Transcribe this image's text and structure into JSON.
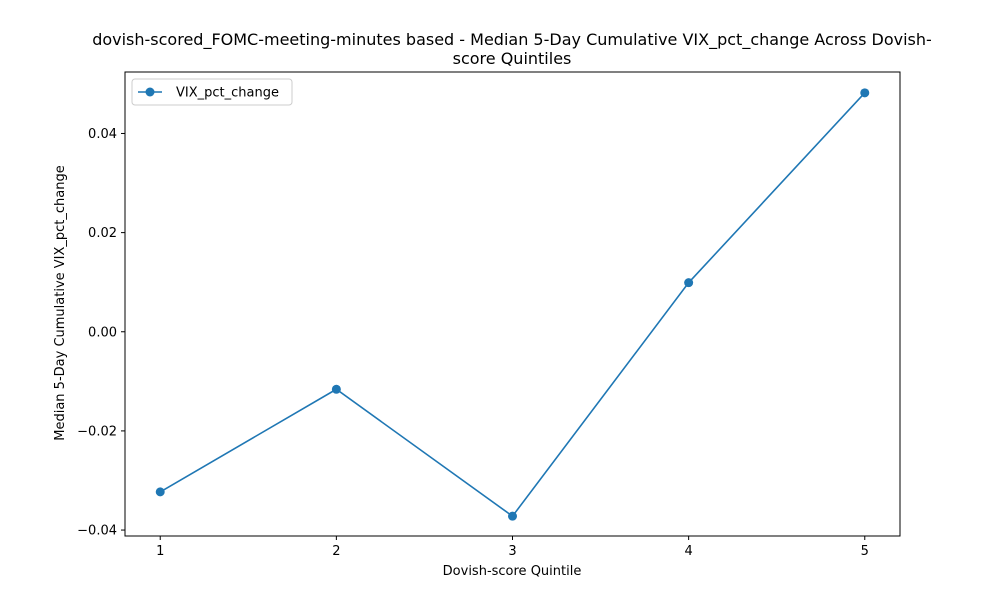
{
  "chart_data": {
    "type": "line",
    "title_lines": [
      "dovish-scored_FOMC-meeting-minutes based - Median 5-Day Cumulative VIX_pct_change Across Dovish-",
      "score Quintiles"
    ],
    "xlabel": "Dovish-score Quintile",
    "ylabel": "Median 5-Day Cumulative VIX_pct_change",
    "x": [
      1,
      2,
      3,
      4,
      5
    ],
    "x_tick_labels": [
      "1",
      "2",
      "3",
      "4",
      "5"
    ],
    "y_ticks": [
      -0.04,
      -0.02,
      0.0,
      0.02,
      0.04
    ],
    "y_tick_labels": [
      "−0.04",
      "−0.02",
      "0.00",
      "0.02",
      "0.04"
    ],
    "xlim": [
      0.8,
      5.2
    ],
    "ylim": [
      -0.0412,
      0.0524
    ],
    "grid": false,
    "legend_position": "top-left",
    "series": [
      {
        "name": "VIX_pct_change",
        "color": "#1f77b4",
        "marker": "circle",
        "values": [
          -0.0323,
          -0.0116,
          -0.0372,
          0.0099,
          0.0482
        ]
      }
    ]
  }
}
